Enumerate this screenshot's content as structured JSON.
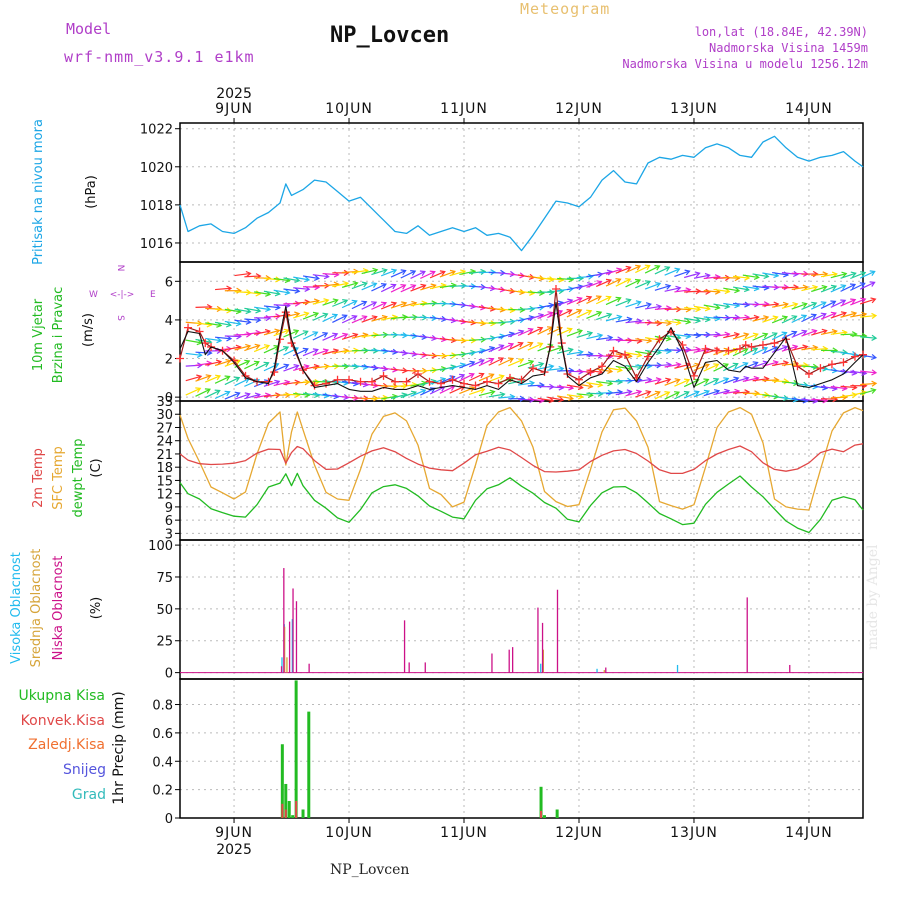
{
  "header": {
    "model_label": "Model",
    "model_name": "wrf-nmm_v3.9.1 e1km",
    "title": "NP_Lovcen",
    "product": "Meteogram",
    "coords": "lon,lat (18.84E, 42.39N)",
    "altitude": "Nadmorska Visina 1459m",
    "model_altitude": "Nadmorska Visina u modelu 1256.12m",
    "footer": "NP_Lovcen",
    "credit": "made by Angel"
  },
  "colors": {
    "pressure": "#1ca6e6",
    "temp2m": "#e04848",
    "sfc_temp": "#e6a832",
    "dewpt": "#22bb22",
    "high_cloud": "#22bbee",
    "mid_cloud": "#d6a43a",
    "low_cloud": "#cc1188",
    "total_rain": "#22bb22",
    "conv_rain": "#e04848",
    "frz_rain": "#f07030",
    "snow": "#5555dd",
    "hail": "#33bbbb",
    "magenta": "#b03ec8",
    "gold": "#e8c070"
  },
  "chart_data": [
    {
      "type": "line",
      "panel": "pressure",
      "ylabel": [
        "Pritisak na nivou mora",
        "(hPa)"
      ],
      "ylim": [
        1015,
        1022.3
      ],
      "yticks": [
        1016,
        1018,
        1020,
        1022
      ],
      "x_top_year": "2025",
      "x_top_labels": [
        "9JUN",
        "10JUN",
        "11JUN",
        "12JUN",
        "13JUN",
        "14JUN"
      ],
      "x_bottom_labels": [
        "9JUN",
        "10JUN",
        "11JUN",
        "12JUN",
        "13JUN",
        "14JUN"
      ],
      "x_bottom_year": "2025",
      "x_range_days": [
        -0.47,
        5.47
      ],
      "series": [
        {
          "x": [
            -0.47,
            -0.4,
            -0.3,
            -0.2,
            -0.1,
            0,
            0.1,
            0.2,
            0.3,
            0.4,
            0.45,
            0.5,
            0.6,
            0.7,
            0.8,
            0.9,
            1,
            1.1,
            1.2,
            1.3,
            1.4,
            1.5,
            1.6,
            1.7,
            1.8,
            1.9,
            2,
            2.1,
            2.2,
            2.3,
            2.4,
            2.5,
            2.6,
            2.7,
            2.8,
            2.9,
            3,
            3.1,
            3.2,
            3.3,
            3.4,
            3.5,
            3.6,
            3.7,
            3.8,
            3.9,
            4,
            4.1,
            4.2,
            4.3,
            4.4,
            4.5,
            4.6,
            4.7,
            4.8,
            4.9,
            5,
            5.1,
            5.2,
            5.3,
            5.4,
            5.47
          ],
          "y": [
            1018,
            1016.6,
            1016.9,
            1017,
            1016.6,
            1016.5,
            1016.8,
            1017.3,
            1017.6,
            1018.1,
            1019.1,
            1018.5,
            1018.8,
            1019.3,
            1019.2,
            1018.7,
            1018.2,
            1018.4,
            1017.8,
            1017.2,
            1016.6,
            1016.5,
            1016.9,
            1016.4,
            1016.6,
            1016.8,
            1016.6,
            1016.8,
            1016.4,
            1016.5,
            1016.3,
            1015.6,
            1016.4,
            1017.3,
            1018.2,
            1018.1,
            1017.9,
            1018.4,
            1019.3,
            1019.8,
            1019.2,
            1019.1,
            1020.2,
            1020.5,
            1020.4,
            1020.6,
            1020.5,
            1021,
            1021.2,
            1021,
            1020.6,
            1020.5,
            1021.3,
            1021.6,
            1021,
            1020.5,
            1020.3,
            1020.5,
            1020.6,
            1020.8,
            1020.3,
            1020
          ]
        }
      ]
    },
    {
      "type": "line",
      "panel": "wind",
      "ylabel": [
        "10m Vjetar",
        "Brzina i Pravac",
        "(m/s)"
      ],
      "compass": [
        "N",
        "W",
        "E",
        "S"
      ],
      "ylim": [
        -0.2,
        7
      ],
      "yticks": [
        0,
        2,
        4,
        6
      ],
      "series": [
        {
          "name": "speed",
          "x": [
            -0.47,
            -0.4,
            -0.3,
            -0.25,
            -0.2,
            -0.1,
            0,
            0.1,
            0.2,
            0.3,
            0.35,
            0.4,
            0.45,
            0.5,
            0.6,
            0.7,
            0.8,
            0.9,
            1,
            1.1,
            1.2,
            1.3,
            1.4,
            1.5,
            1.6,
            1.7,
            1.8,
            1.9,
            2,
            2.1,
            2.2,
            2.3,
            2.4,
            2.5,
            2.6,
            2.7,
            2.75,
            2.8,
            2.85,
            2.9,
            3,
            3.1,
            3.2,
            3.3,
            3.4,
            3.5,
            3.6,
            3.7,
            3.8,
            3.9,
            4,
            4.1,
            4.2,
            4.3,
            4.4,
            4.45,
            4.5,
            4.6,
            4.7,
            4.8,
            4.9,
            5,
            5.1,
            5.2,
            5.3,
            5.4,
            5.47
          ],
          "y": [
            2.5,
            3.4,
            3.3,
            2.2,
            2.6,
            2.4,
            1.8,
            1,
            0.8,
            0.7,
            1.5,
            3.2,
            4.7,
            3,
            1.4,
            0.5,
            0.6,
            0.7,
            0.4,
            0.3,
            0.3,
            0.5,
            0.4,
            0.4,
            0.6,
            0.4,
            0.5,
            0.6,
            0.5,
            0.4,
            0.6,
            0.4,
            0.9,
            0.7,
            1.1,
            1.2,
            2.6,
            4.9,
            2.7,
            1.1,
            0.6,
            1,
            1.2,
            1.9,
            1.6,
            0.8,
            1.8,
            2.6,
            3.6,
            2.4,
            0.5,
            1.8,
            1.9,
            1.4,
            1.3,
            1.6,
            1.5,
            1.5,
            2.3,
            3.1,
            0.6,
            0.5,
            0.7,
            0.9,
            1.2,
            1.8,
            2.2
          ]
        },
        {
          "name": "gust",
          "x": [
            -0.47,
            -0.4,
            -0.3,
            -0.25,
            -0.2,
            -0.1,
            0,
            0.1,
            0.2,
            0.3,
            0.35,
            0.4,
            0.45,
            0.5,
            0.6,
            0.7,
            0.8,
            0.9,
            1,
            1.1,
            1.2,
            1.3,
            1.4,
            1.5,
            1.6,
            1.7,
            1.8,
            1.9,
            2,
            2.1,
            2.2,
            2.3,
            2.4,
            2.5,
            2.6,
            2.7,
            2.75,
            2.8,
            2.85,
            2.9,
            3,
            3.1,
            3.2,
            3.3,
            3.4,
            3.5,
            3.6,
            3.7,
            3.8,
            3.9,
            4,
            4.1,
            4.2,
            4.3,
            4.4,
            4.45,
            4.5,
            4.6,
            4.7,
            4.8,
            4.9,
            5,
            5.1,
            5.2,
            5.3,
            5.4,
            5.47
          ],
          "y": [
            2,
            3.6,
            3.4,
            2.8,
            2.6,
            2.4,
            1.9,
            1.1,
            0.8,
            0.8,
            1.3,
            3,
            4.4,
            2.8,
            1.4,
            0.6,
            0.7,
            0.9,
            0.9,
            0.8,
            0.8,
            1.1,
            0.8,
            0.8,
            1.2,
            0.8,
            0.7,
            0.9,
            0.7,
            0.6,
            0.8,
            0.7,
            1,
            0.9,
            1.5,
            1.3,
            2.6,
            5.6,
            2.8,
            1.2,
            0.9,
            1.3,
            1.6,
            2.4,
            2.2,
            1,
            2.1,
            3,
            3.4,
            2.7,
            1.1,
            2.5,
            2.4,
            2.4,
            2.5,
            2.7,
            2.6,
            2.7,
            2.8,
            3,
            1.6,
            1.2,
            1.5,
            1.7,
            1.8,
            2.1,
            2.2
          ]
        }
      ]
    },
    {
      "type": "line",
      "panel": "temperature",
      "ylabel": [
        "2m Temp",
        "SFC Temp",
        "dewpt Temp",
        "(C)"
      ],
      "ylim": [
        1.5,
        33
      ],
      "yticks": [
        3,
        6,
        9,
        12,
        15,
        18,
        21,
        24,
        27,
        30,
        33
      ],
      "series": [
        {
          "name": "2m Temp",
          "x": [
            -0.47,
            -0.4,
            -0.3,
            -0.2,
            -0.1,
            0,
            0.1,
            0.2,
            0.3,
            0.4,
            0.45,
            0.5,
            0.55,
            0.6,
            0.7,
            0.8,
            0.9,
            1,
            1.1,
            1.2,
            1.3,
            1.4,
            1.5,
            1.6,
            1.7,
            1.8,
            1.9,
            2,
            2.1,
            2.2,
            2.3,
            2.4,
            2.5,
            2.6,
            2.7,
            2.8,
            2.9,
            3,
            3.1,
            3.2,
            3.3,
            3.4,
            3.5,
            3.6,
            3.7,
            3.8,
            3.9,
            4,
            4.1,
            4.2,
            4.3,
            4.4,
            4.5,
            4.6,
            4.7,
            4.8,
            4.9,
            5,
            5.1,
            5.2,
            5.3,
            5.4,
            5.47
          ],
          "y": [
            21,
            19.6,
            18.8,
            18.6,
            18.7,
            18.9,
            19.5,
            21.2,
            22.1,
            22,
            18.9,
            21.3,
            22.7,
            22.2,
            19.5,
            17.5,
            17.6,
            19,
            20.5,
            21.7,
            22.4,
            21.5,
            20,
            18.7,
            17.8,
            17.4,
            17.2,
            18.9,
            20.8,
            21.6,
            22.5,
            21.9,
            20.2,
            18.4,
            17,
            16.9,
            17.1,
            17.4,
            19.3,
            20.7,
            21.7,
            22,
            21.1,
            19.4,
            17.4,
            16.6,
            16.6,
            17.5,
            19.5,
            21,
            22,
            22.8,
            21.5,
            19,
            17.5,
            17.1,
            17.6,
            19,
            21.3,
            22.1,
            21.5,
            23,
            23.3
          ]
        },
        {
          "name": "SFC Temp",
          "x": [
            -0.47,
            -0.4,
            -0.3,
            -0.2,
            -0.1,
            0,
            0.1,
            0.2,
            0.3,
            0.4,
            0.45,
            0.5,
            0.55,
            0.6,
            0.7,
            0.8,
            0.9,
            1,
            1.1,
            1.2,
            1.3,
            1.4,
            1.5,
            1.6,
            1.7,
            1.8,
            1.9,
            2,
            2.1,
            2.2,
            2.3,
            2.4,
            2.5,
            2.6,
            2.7,
            2.8,
            2.9,
            3,
            3.1,
            3.2,
            3.3,
            3.4,
            3.5,
            3.6,
            3.7,
            3.8,
            3.9,
            4,
            4.1,
            4.2,
            4.3,
            4.4,
            4.5,
            4.6,
            4.7,
            4.8,
            4.9,
            5,
            5.1,
            5.2,
            5.3,
            5.4,
            5.47
          ],
          "y": [
            29.8,
            24.5,
            19.2,
            13.5,
            12.2,
            10.8,
            12.4,
            21,
            28,
            30.5,
            18.5,
            26,
            30.5,
            26.5,
            18.5,
            12.3,
            10.8,
            10.5,
            17.5,
            25.5,
            29.5,
            30.3,
            28.5,
            23,
            13.2,
            11.8,
            9,
            10.1,
            18.5,
            27.5,
            30.5,
            31.5,
            28.5,
            22.5,
            12.5,
            10.2,
            9.1,
            9.5,
            17.5,
            26,
            31,
            31.4,
            28.5,
            22.5,
            10.2,
            9.3,
            8.5,
            9.5,
            18,
            27,
            30.5,
            31.5,
            30,
            23.5,
            10.8,
            9,
            8.5,
            8.3,
            17.5,
            26.2,
            30.3,
            31.5,
            30.8
          ]
        },
        {
          "name": "dewpt Temp",
          "x": [
            -0.47,
            -0.4,
            -0.3,
            -0.2,
            -0.1,
            0,
            0.1,
            0.2,
            0.3,
            0.4,
            0.45,
            0.5,
            0.55,
            0.6,
            0.7,
            0.8,
            0.9,
            1,
            1.1,
            1.2,
            1.3,
            1.4,
            1.5,
            1.6,
            1.7,
            1.8,
            1.9,
            2,
            2.1,
            2.2,
            2.3,
            2.4,
            2.5,
            2.6,
            2.7,
            2.8,
            2.9,
            3,
            3.1,
            3.2,
            3.3,
            3.4,
            3.5,
            3.6,
            3.7,
            3.8,
            3.9,
            4,
            4.1,
            4.2,
            4.3,
            4.4,
            4.5,
            4.6,
            4.7,
            4.8,
            4.9,
            5,
            5.1,
            5.2,
            5.3,
            5.4,
            5.47
          ],
          "y": [
            14.5,
            12,
            10.8,
            8.6,
            7.7,
            6.9,
            6.7,
            9.5,
            13.5,
            14.4,
            16.5,
            13.8,
            16.6,
            13.8,
            10.5,
            8.7,
            6.5,
            5.5,
            8.4,
            12.2,
            13.6,
            14,
            13.2,
            11.5,
            9.2,
            8,
            6.7,
            6.3,
            10.5,
            13.1,
            14,
            15.6,
            13.7,
            12.1,
            10,
            8.7,
            6.2,
            5.6,
            9.3,
            12.2,
            13.5,
            13.6,
            12.2,
            9.9,
            7.5,
            6.3,
            5,
            5.3,
            9.6,
            12.3,
            14.2,
            16,
            13.5,
            11.3,
            8.5,
            5.8,
            4.2,
            3.2,
            6.2,
            10.5,
            11.3,
            10.6,
            8.3
          ]
        }
      ]
    },
    {
      "type": "bar",
      "panel": "clouds",
      "ylabel": [
        "Visoka Oblacnost",
        "Srednja Oblacnost",
        "Niska Oblacnost",
        "(%)"
      ],
      "ylim": [
        -5,
        104
      ],
      "yticks": [
        0,
        25,
        50,
        75,
        100
      ],
      "series": [
        {
          "name": "Visoka Oblacnost",
          "x": [
            0.43,
            0.45,
            0.52,
            2.68,
            3.17,
            3.87
          ],
          "y": [
            12,
            38,
            42,
            7,
            3,
            6
          ]
        },
        {
          "name": "Srednja Oblacnost",
          "x": [
            0.44,
            0.46,
            2.69,
            3.22
          ],
          "y": [
            36,
            12,
            18,
            2
          ]
        },
        {
          "name": "Niska Oblacnost",
          "x": [
            0.4,
            0.42,
            0.47,
            0.5,
            0.53,
            0.64,
            1.47,
            1.51,
            1.65,
            2.23,
            2.38,
            2.41,
            2.63,
            2.67,
            2.8,
            3.22,
            4.45,
            4.82
          ],
          "y": [
            5,
            82,
            40,
            66,
            56,
            7,
            41,
            8,
            8,
            15,
            18,
            20,
            51,
            39,
            65,
            4,
            59,
            6
          ]
        }
      ]
    },
    {
      "type": "bar",
      "panel": "precip",
      "ylabel": [
        "Ukupna Kisa",
        "Konvek.Kisa",
        "Zaledj.Kisa",
        "Snijeg",
        "Grad",
        "1hr Precip (mm)"
      ],
      "ylim": [
        0,
        0.98
      ],
      "yticks": [
        0,
        0.2,
        0.4,
        0.6,
        0.8
      ],
      "series": [
        {
          "name": "Ukupna Kisa",
          "x": [
            0.42,
            0.45,
            0.48,
            0.51,
            0.54,
            0.6,
            0.65,
            2.67,
            2.7,
            2.81
          ],
          "y": [
            0.52,
            0.24,
            0.12,
            0.02,
            0.97,
            0.06,
            0.75,
            0.22,
            0.02,
            0.06
          ]
        },
        {
          "name": "Konvek.Kisa",
          "x": [
            0.42,
            0.45,
            0.54,
            2.67
          ],
          "y": [
            0.1,
            0.06,
            0.12,
            0.05
          ]
        }
      ]
    }
  ]
}
